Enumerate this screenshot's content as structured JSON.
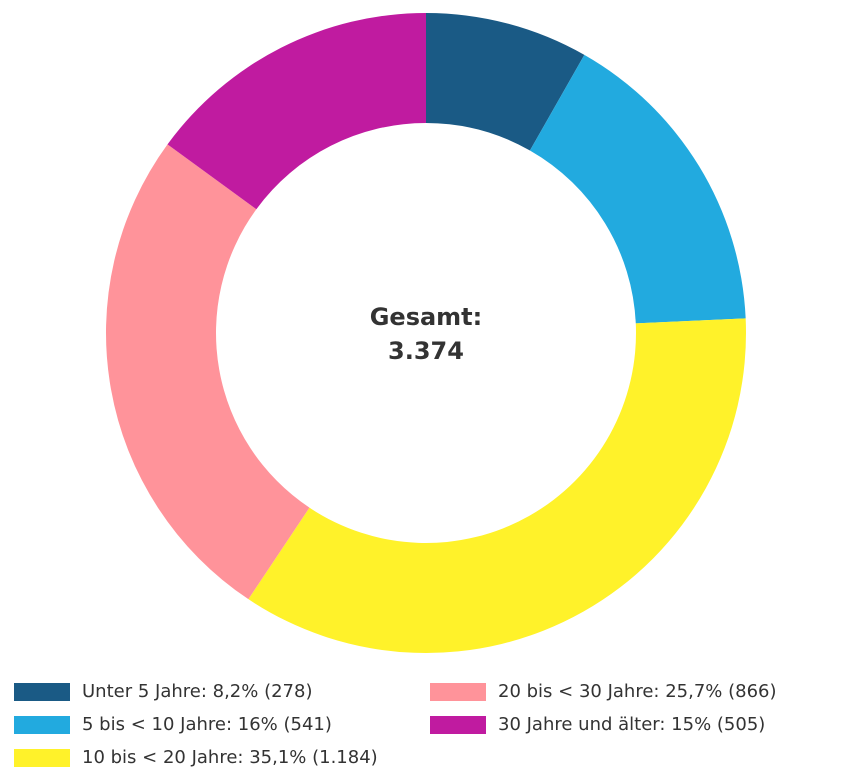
{
  "chart_data": {
    "type": "donut",
    "center_title": "Gesamt:",
    "center_value": "3.374",
    "categories": [
      "Unter 5 Jahre: 8,2% (278)",
      "5 bis < 10 Jahre: 16% (541)",
      "10 bis < 20 Jahre: 35,1% (1.184)",
      "20 bis < 30 Jahre: 25,7% (866)",
      "30 Jahre und älter: 15% (505)"
    ],
    "values": [
      278,
      541,
      1184,
      866,
      505
    ],
    "colors": [
      "#1a5a85",
      "#22aadf",
      "#fff22a",
      "#ff939a",
      "#c01ba0"
    ],
    "legend": "bottom"
  }
}
